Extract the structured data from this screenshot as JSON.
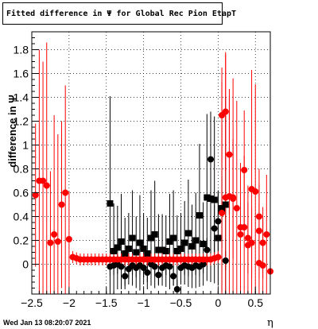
{
  "title": "Fitted difference in  Ψ  for Global Rec Pion EtapT",
  "timestamp": "Wed Jan 13 08:20:07 2021",
  "chart_data": {
    "type": "scatter",
    "xlabel": "η",
    "ylabel": "difference in Ψ",
    "xlim": [
      -2.5,
      0.7
    ],
    "ylim": [
      -0.25,
      1.95
    ],
    "grid": true,
    "x_ticks": [
      -2.5,
      -2,
      -1.5,
      -1,
      -0.5,
      0,
      0.5
    ],
    "x_tick_labels": [
      "−2.5",
      "−2",
      "−1.5",
      "−1",
      "−0.5",
      "0",
      "0.5"
    ],
    "y_ticks": [
      0,
      0.2,
      0.4,
      0.6,
      0.8,
      1,
      1.2,
      1.4,
      1.6,
      1.8
    ],
    "y_tick_labels": [
      "0",
      "0.2",
      "0.4",
      "0.6",
      "0.8",
      "1",
      "1.2",
      "1.4",
      "1.6",
      "1.8"
    ],
    "series": [
      {
        "marker": "square",
        "color": "#000000",
        "points": [
          [
            -1.45,
            0.51,
            0.9
          ],
          [
            -1.4,
            0.11,
            0.4
          ],
          [
            -1.35,
            0.14,
            0.35
          ],
          [
            -1.3,
            0.19,
            0.4
          ],
          [
            -1.25,
            0.09,
            0.3
          ],
          [
            -1.2,
            0.13,
            0.3
          ],
          [
            -1.15,
            0.22,
            0.4
          ],
          [
            -1.1,
            0.1,
            0.3
          ],
          [
            -1.05,
            0.18,
            0.4
          ],
          [
            -1.0,
            0.13,
            0.3
          ],
          [
            -0.95,
            0.09,
            0.3
          ],
          [
            -0.9,
            0.22,
            0.4
          ],
          [
            -0.85,
            0.25,
            0.45
          ],
          [
            -0.8,
            0.12,
            0.3
          ],
          [
            -0.75,
            0.12,
            0.3
          ],
          [
            -0.7,
            0.11,
            0.3
          ],
          [
            -0.65,
            0.19,
            0.4
          ],
          [
            -0.6,
            0.22,
            0.4
          ],
          [
            -0.55,
            0.11,
            0.3
          ],
          [
            -0.5,
            0.13,
            0.3
          ],
          [
            -0.45,
            0.18,
            0.35
          ],
          [
            -0.4,
            0.26,
            0.45
          ],
          [
            -0.35,
            0.15,
            0.35
          ],
          [
            -0.3,
            0.2,
            0.4
          ],
          [
            -0.25,
            0.41,
            0.6
          ],
          [
            -0.2,
            0.17,
            0.35
          ],
          [
            -0.15,
            0.56,
            0.7
          ],
          [
            -0.1,
            0.55,
            0.7
          ],
          [
            -0.05,
            0.54,
            0.7
          ],
          [
            0.0,
            0.22,
            0.4
          ],
          [
            0.05,
            0.47,
            0.7
          ],
          [
            0.1,
            0.5,
            0.9
          ]
        ]
      },
      {
        "marker": "circle",
        "color": "#000000",
        "points": [
          [
            -1.45,
            -0.02,
            0.08
          ],
          [
            -1.4,
            -0.01,
            0.08
          ],
          [
            -1.35,
            0.0,
            0.08
          ],
          [
            -1.3,
            -0.02,
            0.08
          ],
          [
            -1.25,
            -0.1,
            0.08
          ],
          [
            -1.2,
            -0.04,
            0.08
          ],
          [
            -1.15,
            -0.01,
            0.08
          ],
          [
            -1.1,
            -0.03,
            0.08
          ],
          [
            -1.05,
            -0.01,
            0.08
          ],
          [
            -1.0,
            -0.03,
            0.08
          ],
          [
            -0.95,
            -0.07,
            0.08
          ],
          [
            -0.9,
            0.0,
            0.08
          ],
          [
            -0.85,
            -0.02,
            0.08
          ],
          [
            -0.8,
            -0.09,
            0.08
          ],
          [
            -0.75,
            -0.03,
            0.08
          ],
          [
            -0.7,
            -0.01,
            0.08
          ],
          [
            -0.65,
            -0.02,
            0.08
          ],
          [
            -0.6,
            -0.1,
            0.08
          ],
          [
            -0.55,
            -0.21,
            0.08
          ],
          [
            -0.5,
            -0.03,
            0.08
          ],
          [
            -0.45,
            -0.01,
            0.08
          ],
          [
            -0.4,
            -0.02,
            0.08
          ],
          [
            -0.35,
            -0.03,
            0.08
          ],
          [
            -0.3,
            -0.01,
            0.08
          ],
          [
            -0.25,
            -0.02,
            0.08
          ],
          [
            -0.2,
            0.0,
            0.08
          ],
          [
            -0.15,
            0.12,
            0.1
          ],
          [
            -0.1,
            0.88,
            0.4
          ],
          [
            -0.05,
            0.3,
            0.2
          ],
          [
            0.0,
            0.36,
            0.25
          ],
          [
            0.05,
            0.44,
            0.3
          ],
          [
            0.1,
            0.03,
            0.08
          ]
        ]
      },
      {
        "marker": "circle",
        "color": "#ff0000",
        "points": [
          [
            -2.45,
            0.58,
            0.6
          ],
          [
            -2.4,
            0.7,
            1.1
          ],
          [
            -2.35,
            0.7,
            1.0
          ],
          [
            -2.3,
            0.66,
            1.2
          ],
          [
            -2.25,
            0.18,
            0.6
          ],
          [
            -2.2,
            0.25,
            1.0
          ],
          [
            -2.15,
            0.19,
            0.9
          ],
          [
            -2.1,
            0.5,
            0.7
          ],
          [
            -2.05,
            0.6,
            0.9
          ],
          [
            -2.0,
            0.21,
            0.4
          ],
          [
            -1.95,
            0.06,
            0.05
          ],
          [
            -1.9,
            0.05,
            0.05
          ],
          [
            -1.85,
            0.04,
            0.05
          ],
          [
            -1.8,
            0.04,
            0.05
          ],
          [
            -1.75,
            0.04,
            0.05
          ],
          [
            -1.7,
            0.04,
            0.05
          ],
          [
            -1.65,
            0.04,
            0.05
          ],
          [
            -1.6,
            0.04,
            0.05
          ],
          [
            -1.55,
            0.04,
            0.05
          ],
          [
            -1.5,
            0.04,
            0.05
          ],
          [
            -1.45,
            0.04,
            0.05
          ],
          [
            -1.4,
            0.04,
            0.05
          ],
          [
            -1.35,
            0.04,
            0.05
          ],
          [
            -1.3,
            0.04,
            0.05
          ],
          [
            -1.25,
            0.04,
            0.05
          ],
          [
            -1.2,
            0.04,
            0.05
          ],
          [
            -1.15,
            0.04,
            0.05
          ],
          [
            -1.1,
            0.04,
            0.05
          ],
          [
            -1.05,
            0.04,
            0.05
          ],
          [
            -1.0,
            0.04,
            0.05
          ],
          [
            -0.95,
            0.04,
            0.05
          ],
          [
            -0.9,
            0.04,
            0.05
          ],
          [
            -0.85,
            0.04,
            0.05
          ],
          [
            -0.8,
            0.04,
            0.05
          ],
          [
            -0.75,
            0.04,
            0.05
          ],
          [
            -0.7,
            0.04,
            0.05
          ],
          [
            -0.65,
            0.04,
            0.05
          ],
          [
            -0.6,
            0.04,
            0.05
          ],
          [
            -0.55,
            0.04,
            0.05
          ],
          [
            -0.5,
            0.04,
            0.05
          ],
          [
            -0.45,
            0.04,
            0.05
          ],
          [
            -0.4,
            0.04,
            0.05
          ],
          [
            -0.35,
            0.04,
            0.05
          ],
          [
            -0.3,
            0.04,
            0.05
          ],
          [
            -0.25,
            0.04,
            0.05
          ],
          [
            -0.2,
            0.04,
            0.05
          ],
          [
            -0.15,
            0.04,
            0.05
          ],
          [
            -0.1,
            0.04,
            0.05
          ],
          [
            -0.05,
            0.05,
            0.05
          ],
          [
            0.0,
            0.06,
            0.05
          ],
          [
            0.05,
            0.43,
            1.1
          ],
          [
            0.1,
            0.56,
            1.2
          ],
          [
            0.15,
            0.57,
            0.9
          ],
          [
            0.2,
            0.56,
            1.0
          ],
          [
            0.25,
            0.47,
            0.9
          ],
          [
            0.3,
            0.25,
            0.6
          ],
          [
            0.35,
            0.31,
            0.6
          ],
          [
            0.4,
            0.16,
            0.5
          ],
          [
            0.45,
            0.63,
            1.0
          ],
          [
            0.5,
            0.61,
            0.9
          ],
          [
            0.55,
            0.01,
            0.5
          ],
          [
            0.6,
            -0.01,
            0.4
          ],
          [
            0.65,
            0.25,
            0.5
          ],
          [
            0.7,
            -0.06,
            0.3
          ],
          [
            0.05,
            1.25,
            0.4
          ],
          [
            0.1,
            1.28,
            0.5
          ],
          [
            0.15,
            0.92,
            0.5
          ],
          [
            0.2,
            0.55,
            0.5
          ],
          [
            0.35,
            0.79,
            0.5
          ],
          [
            0.55,
            0.4,
            0.4
          ],
          [
            0.55,
            0.28,
            0.4
          ],
          [
            0.45,
            0.18,
            0.3
          ],
          [
            0.3,
            0.31,
            0.3
          ],
          [
            0.6,
            0.18,
            0.3
          ],
          [
            0.4,
            0.22,
            0.3
          ]
        ]
      }
    ]
  }
}
